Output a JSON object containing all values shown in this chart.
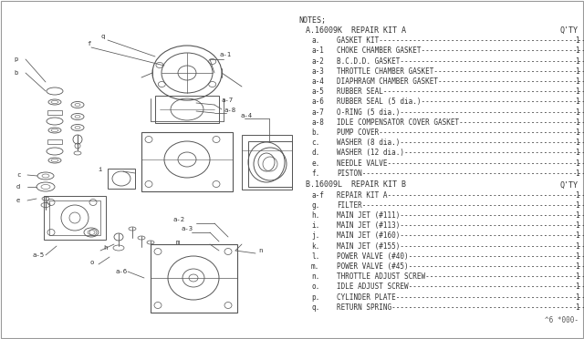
{
  "notes_header": "NOTES;",
  "kit_a_header": "A.16009K  REPAIR KIT A",
  "kit_a_qty": "Q'TY",
  "kit_a_items": [
    [
      "a.",
      "GASKET KIT"
    ],
    [
      "a-1",
      "CHOKE CHAMBER GASKET"
    ],
    [
      "a-2",
      "B.C.D.D. GASKET"
    ],
    [
      "a-3",
      "THROTTLE CHAMBER GASKET"
    ],
    [
      "a-4",
      "DIAPHRAGM CHAMBER GASKET"
    ],
    [
      "a-5",
      "RUBBER SEAL"
    ],
    [
      "a-6",
      "RUBBER SEAL (5 dia.)"
    ],
    [
      "a-7",
      "O-RING (5 dia.)"
    ],
    [
      "a-8",
      "IDLE COMPENSATOR COVER GASKET"
    ],
    [
      "b.",
      "PUMP COVER"
    ],
    [
      "c.",
      "WASHER (8 dia.)"
    ],
    [
      "d.",
      "WASHER (12 dia.)"
    ],
    [
      "e.",
      "NEEDLE VALVE"
    ],
    [
      "f.",
      "PISTON"
    ]
  ],
  "kit_b_header": "B.16009L  REPAIR KIT B",
  "kit_b_qty": "Q'TY",
  "kit_b_items": [
    [
      "a-f",
      "REPAIR KIT A"
    ],
    [
      "g.",
      "FILTER"
    ],
    [
      "h.",
      "MAIN JET (#111)"
    ],
    [
      "i.",
      "MAIN JET (#113)"
    ],
    [
      "j.",
      "MAIN JET (#160)"
    ],
    [
      "k.",
      "MAIN JET (#155)"
    ],
    [
      "l.",
      "POWER VALVE (#40)"
    ],
    [
      "m.",
      "POWER VALVE (#45)"
    ],
    [
      "n.",
      "THROTTLE ADJUST SCREW"
    ],
    [
      "o.",
      "IDLE ADJUST SCREW"
    ],
    [
      "p.",
      "CYLINDER PLATE"
    ],
    [
      "q.",
      "RETURN SPRING"
    ]
  ],
  "footer": "^6 *000-",
  "line_color": "#555555",
  "text_color": "#333333",
  "bg_color": "#ffffff"
}
